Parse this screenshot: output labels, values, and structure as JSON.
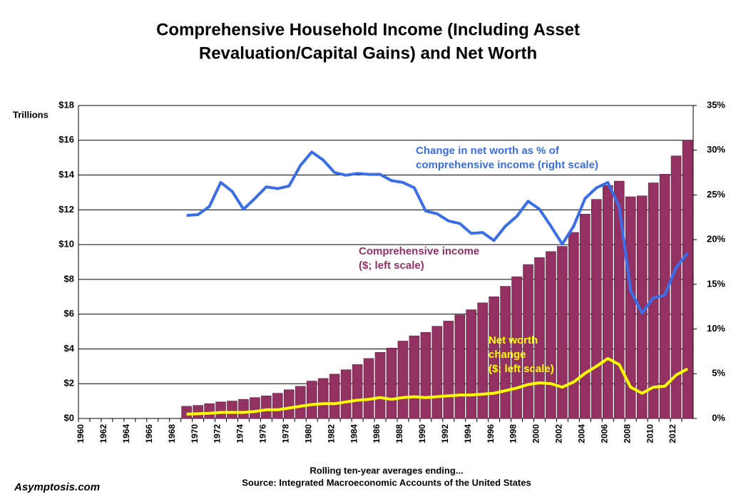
{
  "chart_data": {
    "type": "bar",
    "title": [
      "Comprehensive Household Income (Including Asset",
      "Revaluation/Capital Gains) and Net Worth"
    ],
    "y_axis_label": "Trillions",
    "x_axis_label": "Rolling ten-year averages ending...",
    "source": "Source: Integrated Macroeconomic Accounts of the United States",
    "credit": "Asymptosis.com",
    "categories": [
      "1960",
      null,
      "1962",
      null,
      "1964",
      null,
      "1966",
      null,
      "1968",
      null,
      "1970",
      null,
      "1972",
      null,
      "1974",
      null,
      "1976",
      null,
      "1978",
      null,
      "1980",
      null,
      "1982",
      null,
      "1984",
      null,
      "1986",
      null,
      "1988",
      null,
      "1990",
      null,
      "1992",
      null,
      "1994",
      null,
      "1996",
      null,
      "1998",
      null,
      "2000",
      null,
      "2002",
      null,
      "2004",
      null,
      "2006",
      null,
      "2008",
      null,
      "2010",
      null,
      "2012",
      null
    ],
    "series": [
      {
        "type": "bar",
        "label": [
          "Comprehensive income",
          "($; left scale)"
        ],
        "color": "#933262",
        "values": [
          null,
          null,
          null,
          null,
          null,
          null,
          null,
          null,
          null,
          0.7,
          0.75,
          0.85,
          0.95,
          1.0,
          1.1,
          1.2,
          1.3,
          1.45,
          1.65,
          1.85,
          2.15,
          2.3,
          2.55,
          2.8,
          3.1,
          3.45,
          3.8,
          4.05,
          4.45,
          4.75,
          4.95,
          5.3,
          5.6,
          5.95,
          6.25,
          6.65,
          7.0,
          7.6,
          8.15,
          8.85,
          9.25,
          9.6,
          9.9,
          10.7,
          11.75,
          12.6,
          13.4,
          13.65,
          12.75,
          12.8,
          13.55,
          14.05,
          15.1,
          16.0
        ]
      },
      {
        "type": "line",
        "label": [
          "Net worth",
          "change",
          "($; left scale)"
        ],
        "color": "#ffff00",
        "values": [
          null,
          null,
          null,
          null,
          null,
          null,
          null,
          null,
          null,
          0.25,
          0.27,
          0.3,
          0.35,
          0.35,
          0.35,
          0.4,
          0.5,
          0.5,
          0.6,
          0.7,
          0.8,
          0.85,
          0.85,
          0.95,
          1.05,
          1.1,
          1.2,
          1.1,
          1.2,
          1.25,
          1.2,
          1.25,
          1.3,
          1.35,
          1.35,
          1.4,
          1.45,
          1.6,
          1.75,
          1.95,
          2.05,
          2.0,
          1.8,
          2.1,
          2.6,
          3.0,
          3.45,
          3.1,
          1.8,
          1.45,
          1.8,
          1.85,
          2.5,
          2.85
        ]
      },
      {
        "type": "line",
        "axis": "y2",
        "label": [
          "Change in net worth as % of",
          "comprehensive income (right scale)"
        ],
        "color": "#3a6ee8",
        "values": [
          null,
          null,
          null,
          null,
          null,
          null,
          null,
          null,
          null,
          22.7,
          22.8,
          23.7,
          26.4,
          25.4,
          23.4,
          24.6,
          25.9,
          25.7,
          26.0,
          28.3,
          29.8,
          28.9,
          27.5,
          27.2,
          27.4,
          27.3,
          27.3,
          26.6,
          26.4,
          25.8,
          23.2,
          22.9,
          22.1,
          21.8,
          20.7,
          20.8,
          19.9,
          21.5,
          22.6,
          24.3,
          23.4,
          21.5,
          19.5,
          21.5,
          24.6,
          25.8,
          26.4,
          23.7,
          14.3,
          11.8,
          13.5,
          13.8,
          16.9,
          18.5
        ]
      }
    ],
    "ylim": [
      0,
      18
    ],
    "yticks": [
      {
        "value": 0,
        "label": "$0"
      },
      {
        "value": 2,
        "label": "$2"
      },
      {
        "value": 4,
        "label": "$4"
      },
      {
        "value": 6,
        "label": "$6"
      },
      {
        "value": 8,
        "label": "$8"
      },
      {
        "value": 10,
        "label": "$10"
      },
      {
        "value": 12,
        "label": "$12"
      },
      {
        "value": 14,
        "label": "$14"
      },
      {
        "value": 16,
        "label": "$16"
      },
      {
        "value": 18,
        "label": "$18"
      }
    ],
    "y2lim": [
      0,
      35
    ],
    "y2ticks": [
      {
        "value": 0,
        "label": "0%"
      },
      {
        "value": 5,
        "label": "5%"
      },
      {
        "value": 10,
        "label": "10%"
      },
      {
        "value": 15,
        "label": "15%"
      },
      {
        "value": 20,
        "label": "20%"
      },
      {
        "value": 25,
        "label": "25%"
      },
      {
        "value": 30,
        "label": "30%"
      },
      {
        "value": 35,
        "label": "35%"
      }
    ],
    "grid": true
  }
}
